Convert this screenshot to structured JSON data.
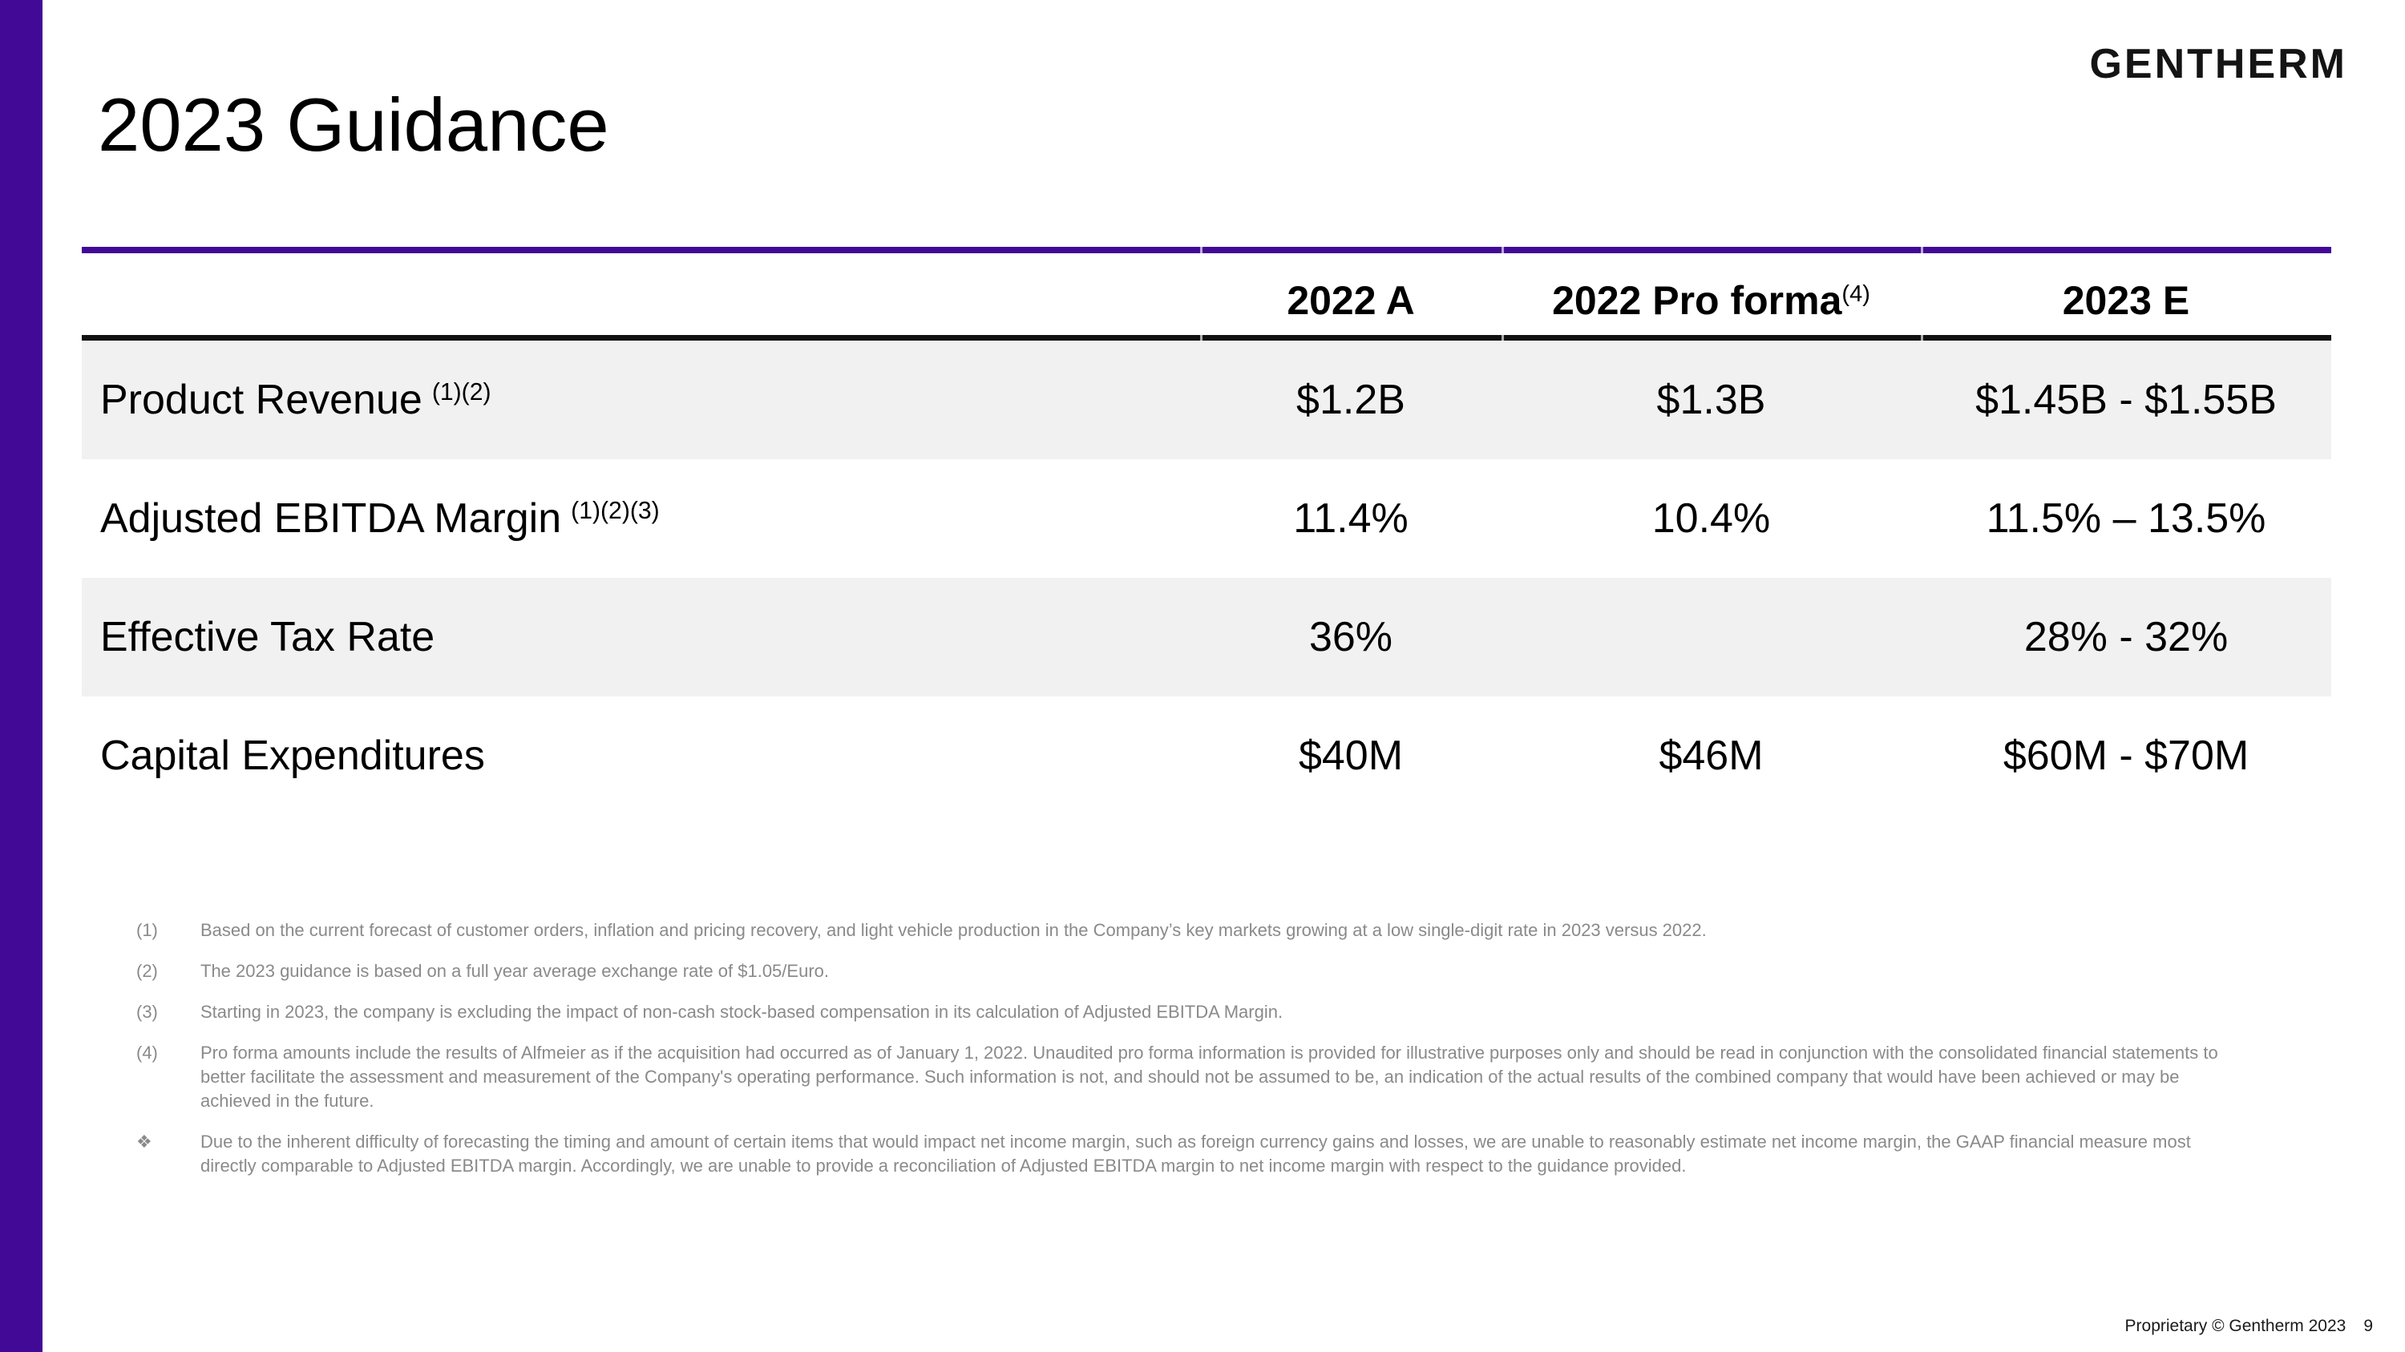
{
  "slide": {
    "title": "2023 Guidance"
  },
  "brand": {
    "logo": "GENTHERM"
  },
  "colors": {
    "accent_purple": "#420996",
    "row_shade": "#F1F1F1",
    "footnote_gray": "#8A8A8A"
  },
  "table": {
    "headers": {
      "col1": "2022 A",
      "col2": "2022 Pro forma",
      "col2_sup": "(4)",
      "col3": "2023 E"
    },
    "rows": [
      {
        "label": "Product Revenue",
        "sup": "(1)(2)",
        "v1": "$1.2B",
        "v2": "$1.3B",
        "v3": "$1.45B - $1.55B",
        "shaded": true
      },
      {
        "label": "Adjusted EBITDA Margin",
        "sup": "(1)(2)(3)",
        "v1": "11.4%",
        "v2": "10.4%",
        "v3": "11.5% – 13.5%",
        "shaded": false
      },
      {
        "label": "Effective Tax Rate",
        "sup": "",
        "v1": "36%",
        "v2": "",
        "v3": "28% - 32%",
        "shaded": true
      },
      {
        "label": "Capital Expenditures",
        "sup": "",
        "v1": "$40M",
        "v2": "$46M",
        "v3": "$60M - $70M",
        "shaded": false
      }
    ]
  },
  "footnotes": [
    {
      "marker": "(1)",
      "text": "Based on the current forecast of customer orders, inflation and pricing recovery, and light vehicle production in the Company’s key markets growing at a low single-digit rate in 2023 versus 2022."
    },
    {
      "marker": "(2)",
      "text": "The 2023 guidance is based on a full year average exchange rate of $1.05/Euro."
    },
    {
      "marker": "(3)",
      "text": "Starting in 2023, the company is excluding the impact of non-cash stock-based compensation in its calculation of Adjusted EBITDA Margin."
    },
    {
      "marker": "(4)",
      "text": "Pro forma amounts include the results of Alfmeier as if the acquisition had occurred as of January 1, 2022. Unaudited pro forma information is provided for illustrative purposes only and should be read in conjunction with the consolidated financial statements to better facilitate the assessment and measurement of the Company's operating performance. Such information is not, and should not be assumed to be, an indication of the actual results of the combined company that would have been achieved or may be achieved in the future."
    },
    {
      "marker": "❖",
      "text": "Due to the inherent difficulty of forecasting the timing and amount of certain items that would impact net income margin, such as foreign currency gains and losses, we are unable to reasonably estimate net income margin, the GAAP financial measure most directly comparable to Adjusted EBITDA margin. Accordingly, we are unable to provide a reconciliation of Adjusted EBITDA margin to net income margin with respect to the guidance provided."
    }
  ],
  "footer": {
    "text": "Proprietary © Gentherm 2023",
    "page": "9"
  }
}
